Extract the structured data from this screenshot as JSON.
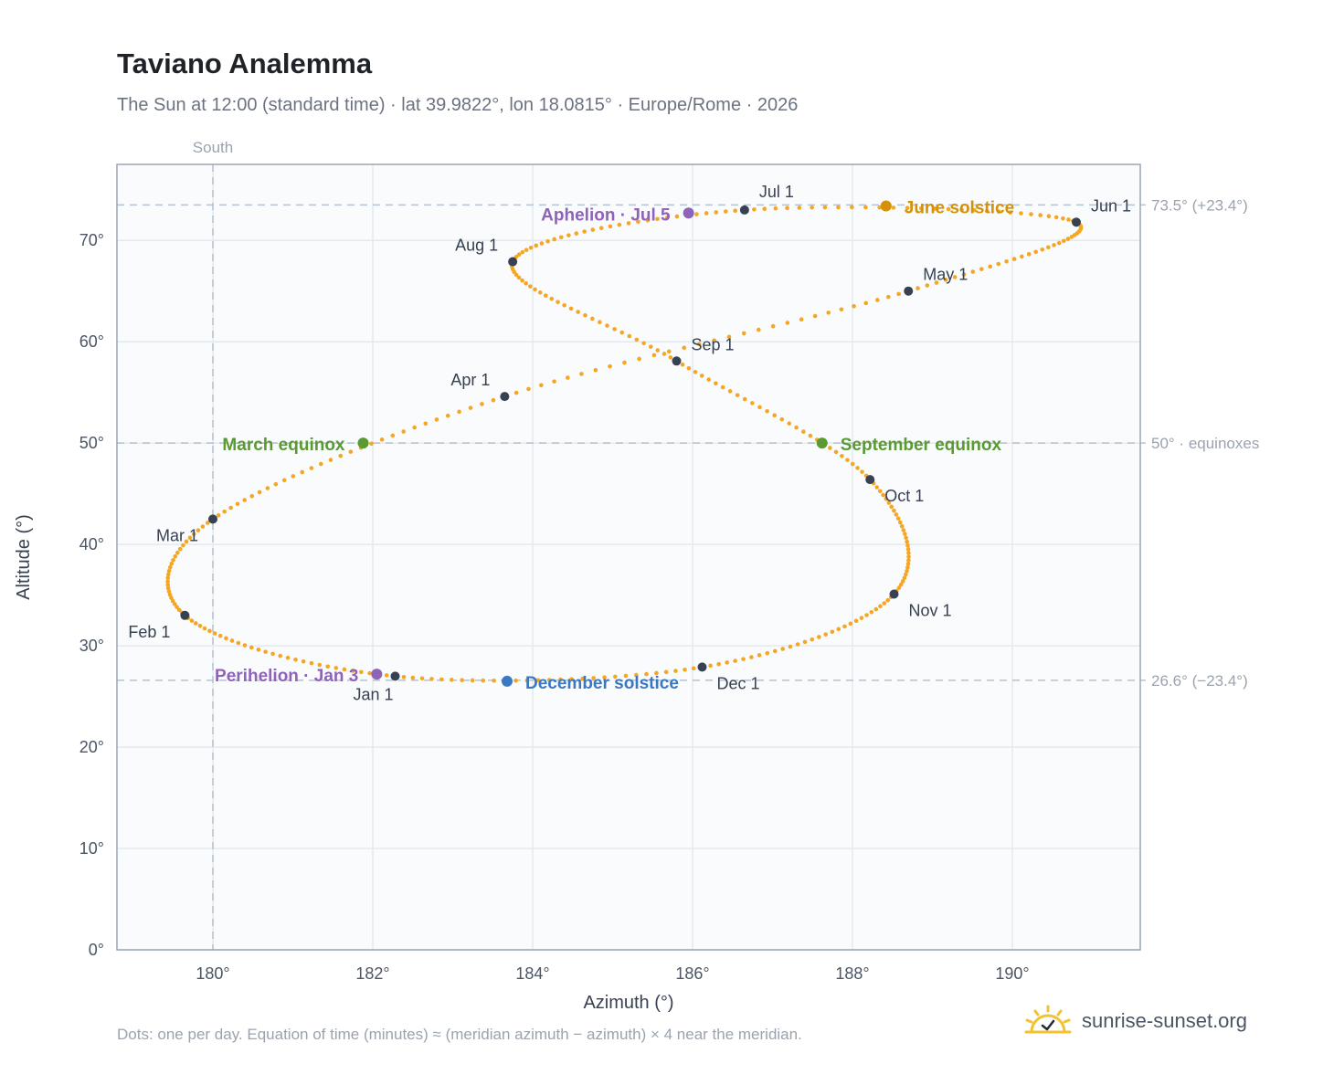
{
  "header": {
    "title": "Taviano Analemma",
    "subtitle": "The Sun at 12:00 (standard time) · lat 39.9822°, lon 18.0815° · Europe/Rome · 2026"
  },
  "footer": {
    "note": "Dots: one per day. Equation of time (minutes) ≈ (meridian azimuth − azimuth) × 4 near the meridian.",
    "brand": "sunrise-sunset.org",
    "brand_icon": "sun-check-icon"
  },
  "chart_data": {
    "type": "scatter",
    "xlabel": "Azimuth (°)",
    "ylabel": "Altitude (°)",
    "xlim": [
      178.8,
      191.6
    ],
    "ylim": [
      0,
      77.5
    ],
    "x_ticks": [
      180,
      182,
      184,
      186,
      188,
      190
    ],
    "x_tick_labels": [
      "180°",
      "182°",
      "184°",
      "186°",
      "188°",
      "190°"
    ],
    "y_ticks": [
      0,
      10,
      20,
      30,
      40,
      50,
      60,
      70
    ],
    "y_tick_labels": [
      "0°",
      "10°",
      "20°",
      "30°",
      "40°",
      "50°",
      "60°",
      "70°"
    ],
    "grid": true,
    "colors": {
      "curve": "#f5a623",
      "month_marker": "#374151",
      "equinox": "#5a9a32",
      "june_solstice": "#d4920c",
      "december_solstice": "#3b78c2",
      "apsis": "#8e63b8",
      "reference_line": "#b6c2cf",
      "plot_background": "#f9fbfd",
      "plot_border": "#9aa6b4",
      "grid": "#e4e9ef"
    },
    "meridian": {
      "x": 180,
      "label": "South"
    },
    "reference_lines": [
      {
        "y": 73.5,
        "label": "73.5° (+23.4°)"
      },
      {
        "y": 50,
        "label": "50° · equinoxes"
      },
      {
        "y": 26.6,
        "label": "26.6° (−23.4°)"
      }
    ],
    "daily_path_days": [
      1,
      32,
      60,
      91,
      121,
      152,
      182,
      213,
      244,
      274,
      305,
      335,
      365
    ],
    "daily_path_azimuth": [
      182.28,
      179.65,
      180.0,
      183.65,
      188.7,
      190.8,
      186.65,
      183.75,
      185.8,
      188.22,
      188.52,
      186.12,
      182.28
    ],
    "daily_path_altitude": [
      27.0,
      33.0,
      42.5,
      54.6,
      65.0,
      71.8,
      73.0,
      67.9,
      58.1,
      46.4,
      35.1,
      27.9,
      27.0
    ],
    "month_markers": [
      {
        "label": "Jan 1",
        "x": 182.28,
        "y": 27.0
      },
      {
        "label": "Feb 1",
        "x": 179.65,
        "y": 33.0
      },
      {
        "label": "Mar 1",
        "x": 180.0,
        "y": 42.5
      },
      {
        "label": "Apr 1",
        "x": 183.65,
        "y": 54.6
      },
      {
        "label": "May 1",
        "x": 188.7,
        "y": 65.0
      },
      {
        "label": "Jun 1",
        "x": 190.8,
        "y": 71.8
      },
      {
        "label": "Jul 1",
        "x": 186.65,
        "y": 73.0
      },
      {
        "label": "Aug 1",
        "x": 183.75,
        "y": 67.9
      },
      {
        "label": "Sep 1",
        "x": 185.8,
        "y": 58.1
      },
      {
        "label": "Oct 1",
        "x": 188.22,
        "y": 46.4
      },
      {
        "label": "Nov 1",
        "x": 188.52,
        "y": 35.1
      },
      {
        "label": "Dec 1",
        "x": 186.12,
        "y": 27.9
      }
    ],
    "events": [
      {
        "label": "March equinox",
        "x": 181.88,
        "y": 50.0,
        "kind": "equinox"
      },
      {
        "label": "June solstice",
        "x": 188.42,
        "y": 73.4,
        "kind": "june_solstice"
      },
      {
        "label": "September equinox",
        "x": 187.62,
        "y": 50.0,
        "kind": "equinox"
      },
      {
        "label": "December solstice",
        "x": 183.68,
        "y": 26.5,
        "kind": "december_solstice"
      },
      {
        "label": "Perihelion · Jan 3",
        "x": 182.05,
        "y": 27.2,
        "kind": "apsis"
      },
      {
        "label": "Aphelion · Jul 5",
        "x": 185.95,
        "y": 72.7,
        "kind": "apsis"
      }
    ]
  }
}
